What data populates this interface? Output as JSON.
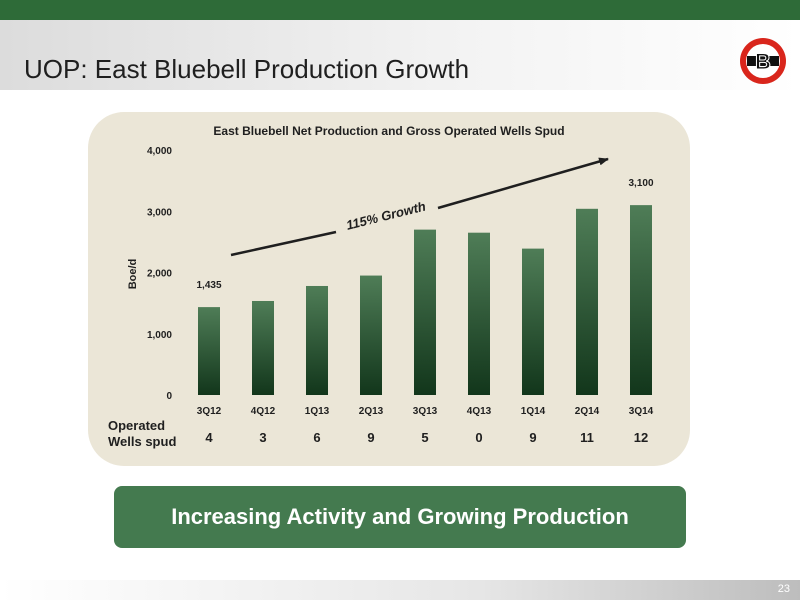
{
  "slide": {
    "title": "UOP: East Bluebell Production Growth",
    "page_number": "23",
    "logo_letter": "B",
    "callout": "Increasing Activity and Growing Production"
  },
  "colors": {
    "brand_green": "#2e6b38",
    "bar_top": "#4f7d57",
    "bar_bottom": "#12361b",
    "panel": "#ebe6d7",
    "logo_red": "#d9261c"
  },
  "chart_data": {
    "type": "bar",
    "title": "East Bluebell Net Production and Gross Operated Wells Spud",
    "ylabel": "Boe/d",
    "xlabel": "",
    "ylim": [
      0,
      4000
    ],
    "yticks": [
      0,
      1000,
      2000,
      3000,
      4000
    ],
    "ytick_labels": [
      "0",
      "1,000",
      "2,000",
      "3,000",
      "4,000"
    ],
    "categories": [
      "3Q12",
      "4Q12",
      "1Q13",
      "2Q13",
      "3Q13",
      "4Q13",
      "1Q14",
      "2Q14",
      "3Q14"
    ],
    "values": [
      1435,
      1535,
      1780,
      1950,
      2700,
      2650,
      2390,
      3040,
      3100
    ],
    "data_labels": [
      {
        "category": "3Q12",
        "text": "1,435"
      },
      {
        "category": "3Q14",
        "text": "3,100"
      }
    ],
    "annotation": "115% Growth",
    "grid": false,
    "wells_row": {
      "label_line1": "Operated",
      "label_line2": "Wells spud",
      "values": [
        "4",
        "3",
        "6",
        "9",
        "5",
        "0",
        "9",
        "11",
        "12"
      ]
    }
  }
}
